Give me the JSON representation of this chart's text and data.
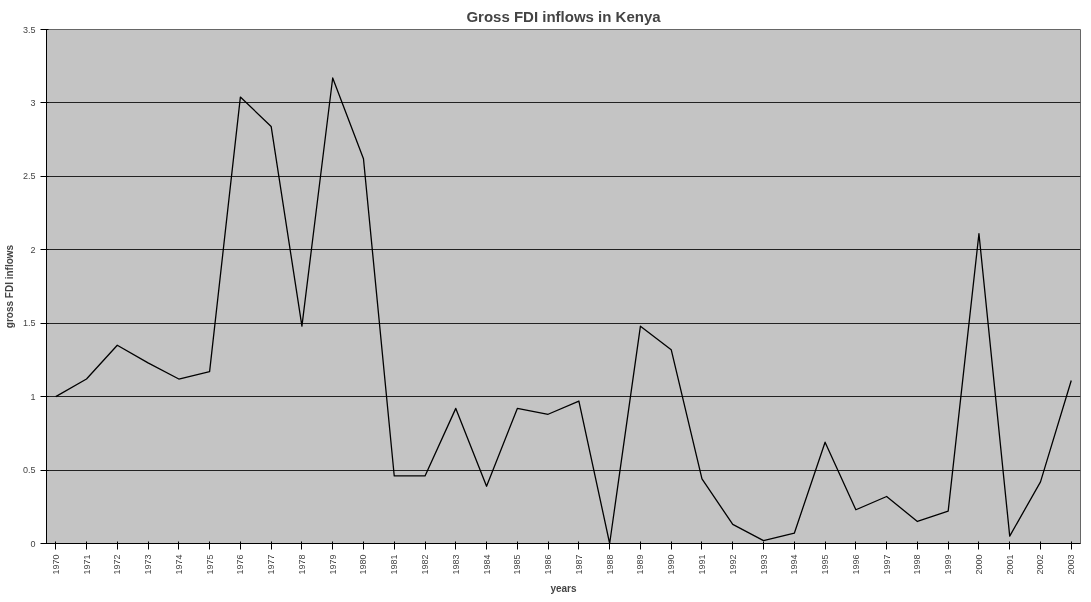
{
  "chart_data": {
    "type": "line",
    "title": "Gross FDI inflows in Kenya",
    "xlabel": "years",
    "ylabel": "gross FDI inflows",
    "categories": [
      "1970",
      "1971",
      "1972",
      "1973",
      "1974",
      "1975",
      "1976",
      "1977",
      "1978",
      "1979",
      "1980",
      "1981",
      "1982",
      "1983",
      "1984",
      "1985",
      "1986",
      "1987",
      "1988",
      "1989",
      "1990",
      "1991",
      "1992",
      "1993",
      "1994",
      "1995",
      "1996",
      "1997",
      "1998",
      "1999",
      "2000",
      "2001",
      "2002",
      "2003"
    ],
    "series": [
      {
        "color": "#000000",
        "values": [
          1.0,
          1.12,
          1.35,
          1.23,
          1.12,
          1.17,
          3.04,
          2.84,
          1.48,
          3.17,
          2.62,
          0.46,
          0.46,
          0.92,
          0.39,
          0.92,
          0.88,
          0.97,
          0.0,
          1.48,
          1.32,
          0.44,
          0.13,
          0.02,
          0.07,
          0.69,
          0.23,
          0.32,
          0.15,
          0.22,
          2.11,
          0.05,
          0.42,
          1.11
        ]
      }
    ],
    "ylim": [
      0,
      3.5
    ],
    "yticks": [
      0,
      0.5,
      1,
      1.5,
      2,
      2.5,
      3,
      3.5
    ],
    "grid": "y",
    "marker": "none",
    "line_style": "solid"
  }
}
